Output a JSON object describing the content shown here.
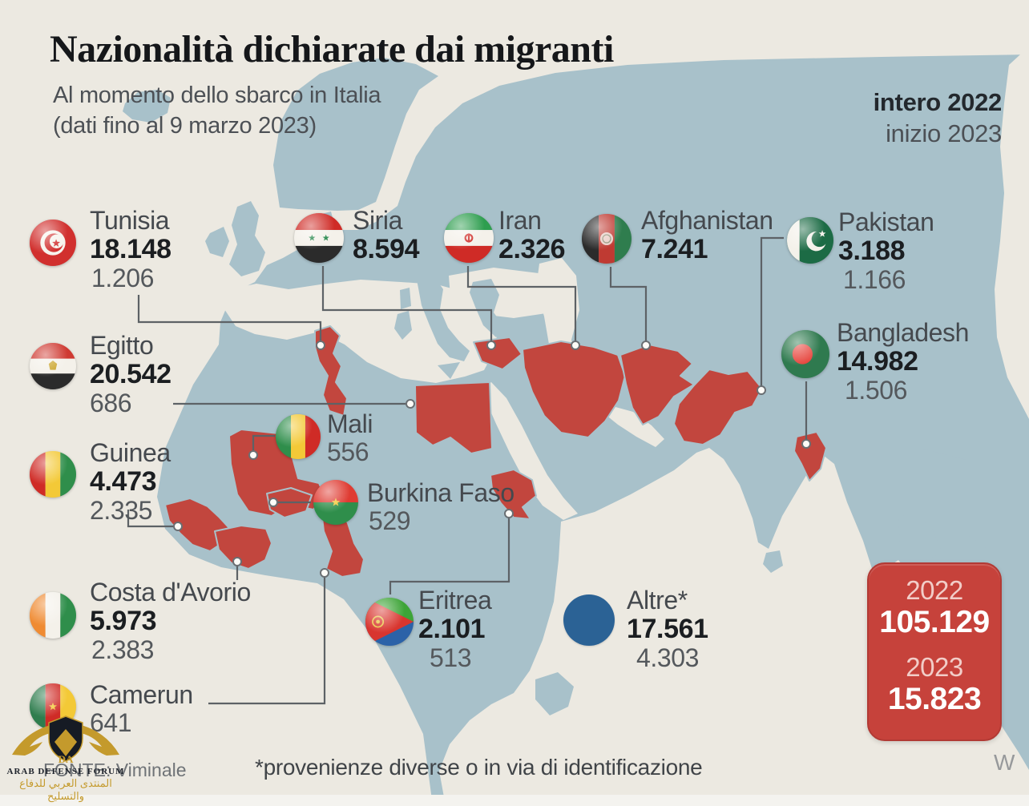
{
  "title": "Nazionalità dichiarate dai migranti",
  "subtitle": {
    "line1": "Al momento dello sbarco in Italia",
    "line2": "(dati fino al 9 marzo 2023)"
  },
  "period": {
    "full_year": "intero 2022",
    "start_year": "inizio 2023"
  },
  "countries": [
    {
      "id": "tunisia",
      "name": "Tunisia",
      "values": [
        {
          "text": "18.148",
          "style": "bold"
        },
        {
          "text": "1.206",
          "style": "regular"
        }
      ],
      "flag": "tunisia-flag"
    },
    {
      "id": "egitto",
      "name": "Egitto",
      "values": [
        {
          "text": "20.542",
          "style": "bold"
        },
        {
          "text": "686",
          "style": "regular"
        }
      ],
      "flag": "egypt-flag"
    },
    {
      "id": "guinea",
      "name": "Guinea",
      "values": [
        {
          "text": "4.473",
          "style": "bold"
        },
        {
          "text": "2.335",
          "style": "regular"
        }
      ],
      "flag": "guinea-flag"
    },
    {
      "id": "costa-davorio",
      "name": "Costa d'Avorio",
      "values": [
        {
          "text": "5.973",
          "style": "bold"
        },
        {
          "text": "2.383",
          "style": "regular"
        }
      ],
      "flag": "ivory-coast-flag"
    },
    {
      "id": "camerun",
      "name": "Camerun",
      "values": [
        {
          "text": "641",
          "style": "regular"
        }
      ],
      "flag": "cameroon-flag"
    },
    {
      "id": "mali",
      "name": "Mali",
      "values": [
        {
          "text": "556",
          "style": "regular"
        }
      ],
      "flag": "mali-flag"
    },
    {
      "id": "burkina-faso",
      "name": "Burkina Faso",
      "values": [
        {
          "text": "529",
          "style": "regular"
        }
      ],
      "flag": "burkina-faso-flag"
    },
    {
      "id": "siria",
      "name": "Siria",
      "values": [
        {
          "text": "8.594",
          "style": "bold"
        }
      ],
      "flag": "syria-flag"
    },
    {
      "id": "iran",
      "name": "Iran",
      "values": [
        {
          "text": "2.326",
          "style": "bold"
        }
      ],
      "flag": "iran-flag"
    },
    {
      "id": "afghanistan",
      "name": "Afghanistan",
      "values": [
        {
          "text": "7.241",
          "style": "bold"
        }
      ],
      "flag": "afghanistan-flag"
    },
    {
      "id": "pakistan",
      "name": "Pakistan",
      "values": [
        {
          "text": "3.188",
          "style": "bold"
        },
        {
          "text": "1.166",
          "style": "regular"
        }
      ],
      "flag": "pakistan-flag"
    },
    {
      "id": "bangladesh",
      "name": "Bangladesh",
      "values": [
        {
          "text": "14.982",
          "style": "bold"
        },
        {
          "text": "1.506",
          "style": "regular"
        }
      ],
      "flag": "bangladesh-flag"
    },
    {
      "id": "eritrea",
      "name": "Eritrea",
      "values": [
        {
          "text": "2.101",
          "style": "bold"
        },
        {
          "text": "513",
          "style": "regular"
        }
      ],
      "flag": "eritrea-flag"
    },
    {
      "id": "altre",
      "name": "Altre*",
      "values": [
        {
          "text": "17.561",
          "style": "bold"
        },
        {
          "text": "4.303",
          "style": "regular"
        }
      ],
      "flag": "other-dot"
    }
  ],
  "summary": {
    "year_1": "2022",
    "total_1": "105.129",
    "year_2": "2023",
    "total_2": "15.823"
  },
  "footer": {
    "source": "FONTE: Viminale",
    "note": "*provenienze diverse o in via di identificazione",
    "credit": "W"
  },
  "watermark": {
    "initials": "DA",
    "name": "ARAB DEFENSE FORUM",
    "name_ar": "المنتدى العربي للدفاع والتسليح"
  },
  "colors": {
    "sea": "#ece9e1",
    "land": "#a8c1ca",
    "highlight": "#c2463e",
    "summary_box": "#c6423b",
    "other_dot": "#2b6295",
    "line": "#5d6266"
  }
}
